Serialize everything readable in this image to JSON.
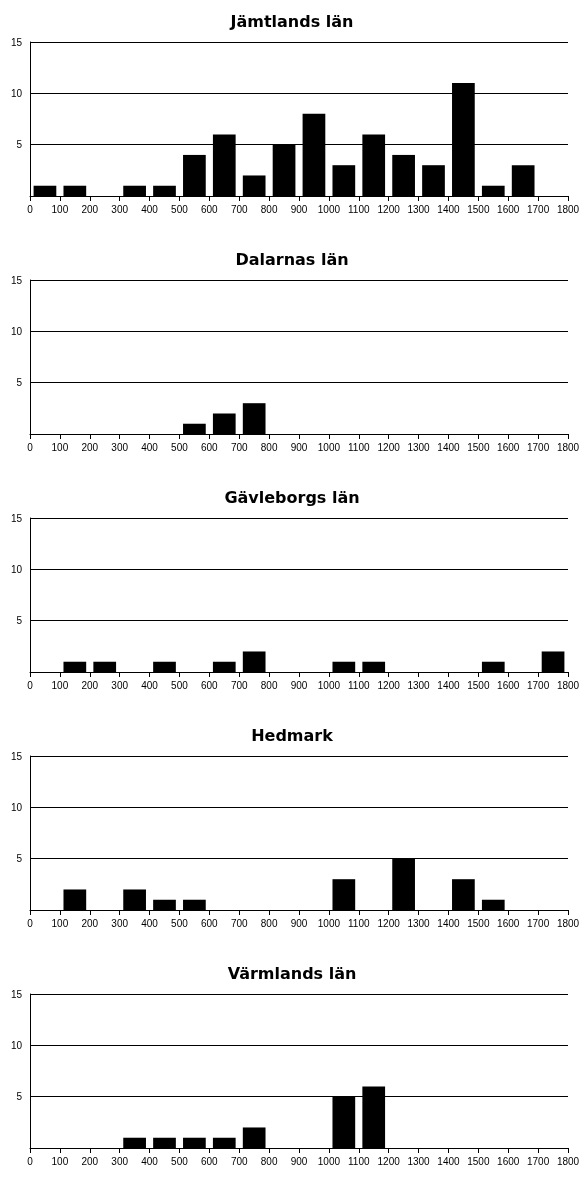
{
  "chart_data": [
    {
      "type": "histogram",
      "title": "Jämtlands län",
      "bins": [
        0,
        100,
        200,
        300,
        400,
        500,
        600,
        700,
        800,
        900,
        1000,
        1100,
        1200,
        1300,
        1400,
        1500,
        1600,
        1700,
        1800
      ],
      "values": [
        1,
        1,
        0,
        1,
        1,
        4,
        6,
        2,
        5,
        8,
        3,
        6,
        4,
        3,
        11,
        1,
        3,
        0
      ],
      "color": "#000000",
      "ylim": [
        0,
        15
      ],
      "yticks": [
        5,
        10,
        15
      ],
      "xlim": [
        0,
        1800
      ],
      "xticks": [
        0,
        100,
        200,
        300,
        400,
        500,
        600,
        700,
        800,
        900,
        1000,
        1100,
        1200,
        1300,
        1400,
        1500,
        1600,
        1700,
        1800
      ],
      "grid": "y"
    },
    {
      "type": "histogram",
      "title": "Dalarnas län",
      "bins": [
        0,
        100,
        200,
        300,
        400,
        500,
        600,
        700,
        800,
        900,
        1000,
        1100,
        1200,
        1300,
        1400,
        1500,
        1600,
        1700,
        1800
      ],
      "values": [
        0,
        0,
        0,
        0,
        0,
        1,
        2,
        3,
        0,
        0,
        0,
        0,
        0,
        0,
        0,
        0,
        0,
        0
      ],
      "color": "#000000",
      "ylim": [
        0,
        15
      ],
      "yticks": [
        5,
        10,
        15
      ],
      "xlim": [
        0,
        1800
      ],
      "xticks": [
        0,
        100,
        200,
        300,
        400,
        500,
        600,
        700,
        800,
        900,
        1000,
        1100,
        1200,
        1300,
        1400,
        1500,
        1600,
        1700,
        1800
      ],
      "grid": "y"
    },
    {
      "type": "histogram",
      "title": "Gävleborgs län",
      "bins": [
        0,
        100,
        200,
        300,
        400,
        500,
        600,
        700,
        800,
        900,
        1000,
        1100,
        1200,
        1300,
        1400,
        1500,
        1600,
        1700,
        1800
      ],
      "values": [
        0,
        1,
        1,
        0,
        1,
        0,
        1,
        2,
        0,
        0,
        1,
        1,
        0,
        0,
        0,
        1,
        0,
        2
      ],
      "color": "#000000",
      "ylim": [
        0,
        15
      ],
      "yticks": [
        5,
        10,
        15
      ],
      "xlim": [
        0,
        1800
      ],
      "xticks": [
        0,
        100,
        200,
        300,
        400,
        500,
        600,
        700,
        800,
        900,
        1000,
        1100,
        1200,
        1300,
        1400,
        1500,
        1600,
        1700,
        1800
      ],
      "grid": "y"
    },
    {
      "type": "histogram",
      "title": "Hedmark",
      "bins": [
        0,
        100,
        200,
        300,
        400,
        500,
        600,
        700,
        800,
        900,
        1000,
        1100,
        1200,
        1300,
        1400,
        1500,
        1600,
        1700,
        1800
      ],
      "values": [
        0,
        2,
        0,
        2,
        1,
        1,
        0,
        0,
        0,
        0,
        3,
        0,
        5,
        0,
        3,
        1,
        0,
        0
      ],
      "color": "#000000",
      "ylim": [
        0,
        15
      ],
      "yticks": [
        5,
        10,
        15
      ],
      "xlim": [
        0,
        1800
      ],
      "xticks": [
        0,
        100,
        200,
        300,
        400,
        500,
        600,
        700,
        800,
        900,
        1000,
        1100,
        1200,
        1300,
        1400,
        1500,
        1600,
        1700,
        1800
      ],
      "grid": "y"
    },
    {
      "type": "histogram",
      "title": "Värmlands län",
      "bins": [
        0,
        100,
        200,
        300,
        400,
        500,
        600,
        700,
        800,
        900,
        1000,
        1100,
        1200,
        1300,
        1400,
        1500,
        1600,
        1700,
        1800
      ],
      "values": [
        0,
        0,
        0,
        1,
        1,
        1,
        1,
        2,
        0,
        0,
        5,
        6,
        0,
        0,
        0,
        0,
        0,
        0
      ],
      "color": "#000000",
      "ylim": [
        0,
        15
      ],
      "yticks": [
        5,
        10,
        15
      ],
      "xlim": [
        0,
        1800
      ],
      "xticks": [
        0,
        100,
        200,
        300,
        400,
        500,
        600,
        700,
        800,
        900,
        1000,
        1100,
        1200,
        1300,
        1400,
        1500,
        1600,
        1700,
        1800
      ],
      "grid": "y"
    }
  ]
}
